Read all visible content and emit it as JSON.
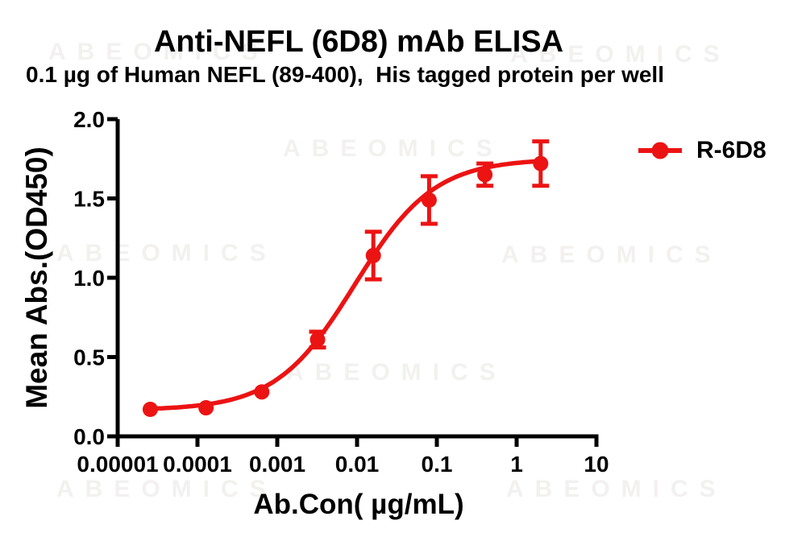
{
  "title": "Anti-NEFL (6D8) mAb ELISA",
  "subtitle": "0.1 µg of Human NEFL (89-400),  His tagged protein per well",
  "watermark": {
    "text": "ABEOMICS",
    "color": "#F3F1F0"
  },
  "legend": {
    "label": "R-6D8"
  },
  "colors": {
    "series": "#EC1313",
    "axis": "#000000",
    "background": "#FFFFFF",
    "text": "#000000"
  },
  "chart_data": {
    "type": "line",
    "title": "Anti-NEFL (6D8) mAb ELISA",
    "subtitle": "0.1 µg of Human NEFL (89-400),  His tagged protein per well",
    "xlabel": "Ab.Con( µg/mL)",
    "ylabel": "Mean Abs.(OD450)",
    "x_scale": "log10",
    "xlim": [
      1e-05,
      10
    ],
    "ylim": [
      0.0,
      2.0
    ],
    "grid": false,
    "legend_position": "right-top",
    "x_tick_labels": [
      "0.00001",
      "0.0001",
      "0.001",
      "0.01",
      "0.1",
      "1",
      "10"
    ],
    "y_tick_labels": [
      "0.0",
      "0.5",
      "1.0",
      "1.5",
      "2.0"
    ],
    "series": [
      {
        "name": "R-6D8",
        "color": "#EC1313",
        "marker": "circle",
        "x": [
          2.56e-05,
          0.000128,
          0.00064,
          0.0032,
          0.016,
          0.08,
          0.4,
          2
        ],
        "y": [
          0.17,
          0.18,
          0.28,
          0.61,
          1.14,
          1.49,
          1.65,
          1.72
        ],
        "y_err": [
          0,
          0,
          0,
          0.05,
          0.15,
          0.15,
          0.07,
          0.14
        ],
        "fit_4pl": {
          "bottom": 0.165,
          "top": 1.75,
          "ec50": 0.0094,
          "hill": 0.876
        }
      }
    ]
  }
}
